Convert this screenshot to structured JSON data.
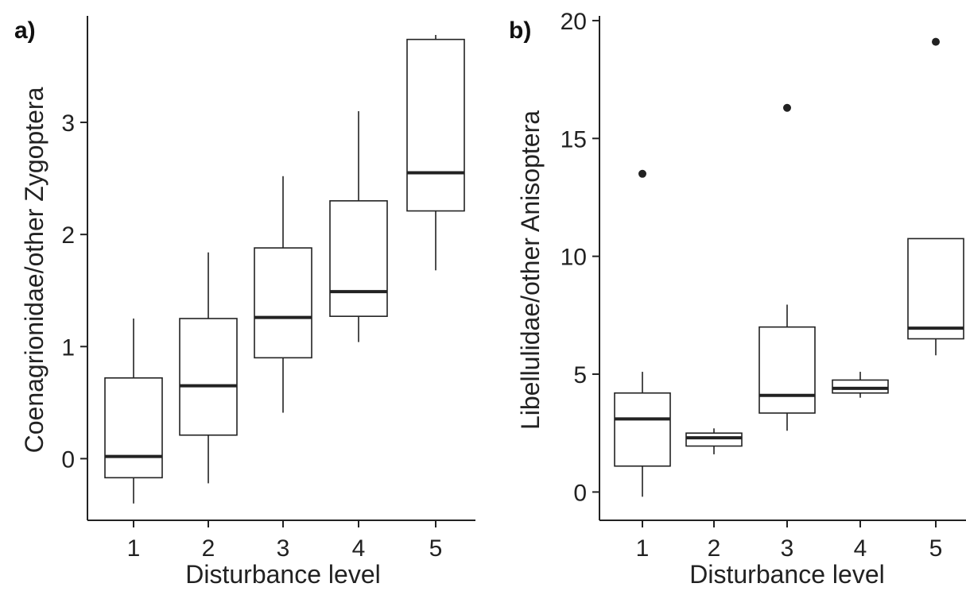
{
  "chart_data": [
    {
      "type": "box",
      "panel_label": "a)",
      "xlabel": "Disturbance level",
      "ylabel": "Coenagrionidae/other Zygoptera",
      "categories": [
        "1",
        "2",
        "3",
        "4",
        "5"
      ],
      "yticks": [
        0,
        1,
        2,
        3
      ],
      "ylim": [
        -0.55,
        3.95
      ],
      "boxes": [
        {
          "category": "1",
          "whisker_low": -0.4,
          "q1": -0.17,
          "median": 0.02,
          "q3": 0.72,
          "whisker_high": 1.25,
          "outliers": []
        },
        {
          "category": "2",
          "whisker_low": -0.22,
          "q1": 0.21,
          "median": 0.65,
          "q3": 1.25,
          "whisker_high": 1.84,
          "outliers": []
        },
        {
          "category": "3",
          "whisker_low": 0.41,
          "q1": 0.9,
          "median": 1.26,
          "q3": 1.88,
          "whisker_high": 2.52,
          "outliers": []
        },
        {
          "category": "4",
          "whisker_low": 1.04,
          "q1": 1.27,
          "median": 1.49,
          "q3": 2.3,
          "whisker_high": 3.1,
          "outliers": []
        },
        {
          "category": "5",
          "whisker_low": 1.68,
          "q1": 2.21,
          "median": 2.55,
          "q3": 3.74,
          "whisker_high": 3.78,
          "outliers": []
        }
      ]
    },
    {
      "type": "box",
      "panel_label": "b)",
      "xlabel": "Disturbance level",
      "ylabel": "Libellulidae/other Anisoptera",
      "categories": [
        "1",
        "2",
        "3",
        "4",
        "5"
      ],
      "yticks": [
        0,
        5,
        10,
        15,
        20
      ],
      "ylim": [
        -1.2,
        20.2
      ],
      "boxes": [
        {
          "category": "1",
          "whisker_low": -0.2,
          "q1": 1.1,
          "median": 3.1,
          "q3": 4.2,
          "whisker_high": 5.1,
          "outliers": [
            13.5
          ]
        },
        {
          "category": "2",
          "whisker_low": 1.6,
          "q1": 1.95,
          "median": 2.3,
          "q3": 2.5,
          "whisker_high": 2.7,
          "outliers": []
        },
        {
          "category": "3",
          "whisker_low": 2.6,
          "q1": 3.35,
          "median": 4.1,
          "q3": 7.0,
          "whisker_high": 7.95,
          "outliers": [
            16.3
          ]
        },
        {
          "category": "4",
          "whisker_low": 4.0,
          "q1": 4.2,
          "median": 4.4,
          "q3": 4.75,
          "whisker_high": 5.1,
          "outliers": []
        },
        {
          "category": "5",
          "whisker_low": 5.8,
          "q1": 6.5,
          "median": 6.95,
          "q3": 10.75,
          "whisker_high": 10.75,
          "outliers": [
            19.1
          ]
        }
      ]
    }
  ]
}
